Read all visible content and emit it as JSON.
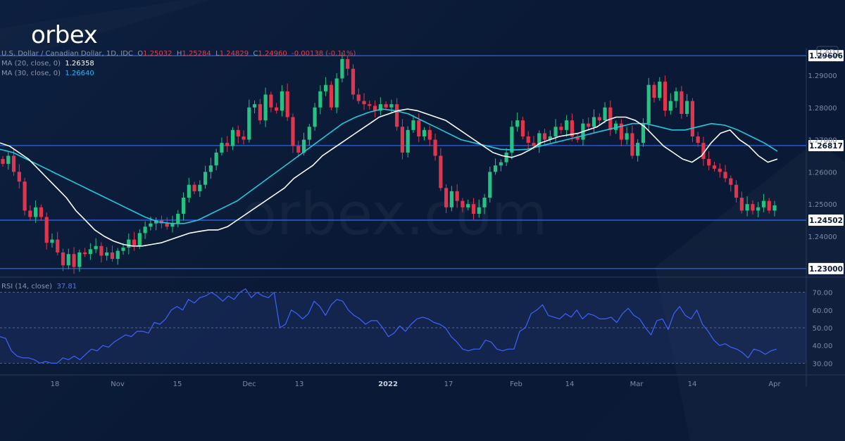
{
  "brand": {
    "logo_text": "orbex",
    "watermark": "orbex.com"
  },
  "header": {
    "symbol": "U.S. Dollar / Canadian Dollar, 1D, IDC",
    "ohlc": {
      "o_label": "O",
      "o": "1.25032",
      "h_label": "H",
      "h": "1.25284",
      "l_label": "L",
      "l": "1.24829",
      "c_label": "C",
      "c": "1.24960",
      "change": "-0.00138 (-0.11%)"
    }
  },
  "indicators": {
    "ma20": {
      "label": "MA (20, close, 0)",
      "value": "1.26358",
      "color": "#ffffff"
    },
    "ma30": {
      "label": "MA (30, close, 0)",
      "value": "1.26640",
      "color": "#26c6da"
    },
    "rsi": {
      "label": "RSI (14, close)",
      "value": "37.81",
      "color": "#3d63ff"
    }
  },
  "colors": {
    "up": "#26c281",
    "down": "#e0364c",
    "level": "#2f6bff",
    "background": "#0b1a36"
  },
  "chart_data": [
    {
      "type": "candlestick",
      "currency": "CAD",
      "ylim": [
        1.228,
        1.2985
      ],
      "yticks": [
        "1.24000",
        "1.25000",
        "1.26000",
        "1.27000",
        "1.28000",
        "1.29000"
      ],
      "levels": [
        "1.29606",
        "1.26817",
        "1.24502",
        "1.23000"
      ],
      "x_tick_labels": [
        "18",
        "Nov",
        "15",
        "Dec",
        "13",
        "2022",
        "17",
        "Feb",
        "14",
        "Mar",
        "14",
        "Apr"
      ],
      "closes": [
        1.2625,
        1.265,
        1.26,
        1.257,
        1.248,
        1.246,
        1.249,
        1.246,
        1.238,
        1.239,
        1.235,
        1.231,
        1.2345,
        1.2305,
        1.235,
        1.2345,
        1.236,
        1.237,
        1.234,
        1.235,
        1.233,
        1.2355,
        1.2365,
        1.239,
        1.237,
        1.241,
        1.243,
        1.244,
        1.245,
        1.244,
        1.243,
        1.244,
        1.247,
        1.252,
        1.256,
        1.254,
        1.256,
        1.26,
        1.262,
        1.266,
        1.269,
        1.268,
        1.273,
        1.271,
        1.27,
        1.28,
        1.281,
        1.276,
        1.284,
        1.28,
        1.279,
        1.285,
        1.277,
        1.268,
        1.266,
        1.27,
        1.274,
        1.28,
        1.285,
        1.287,
        1.28,
        1.289,
        1.295,
        1.292,
        1.284,
        1.282,
        1.281,
        1.2805,
        1.279,
        1.281,
        1.28,
        1.281,
        1.274,
        1.266,
        1.273,
        1.276,
        1.271,
        1.273,
        1.27,
        1.265,
        1.255,
        1.249,
        1.254,
        1.251,
        1.249,
        1.25,
        1.247,
        1.249,
        1.252,
        1.26,
        1.262,
        1.263,
        1.266,
        1.274,
        1.276,
        1.271,
        1.269,
        1.268,
        1.272,
        1.27,
        1.271,
        1.274,
        1.273,
        1.276,
        1.271,
        1.27,
        1.275,
        1.274,
        1.277,
        1.276,
        1.28,
        1.273,
        1.275,
        1.27,
        1.272,
        1.265,
        1.269,
        1.275,
        1.287,
        1.283,
        1.288,
        1.279,
        1.282,
        1.285,
        1.278,
        1.282,
        1.271,
        1.269,
        1.264,
        1.262,
        1.261,
        1.26,
        1.258,
        1.256,
        1.252,
        1.248,
        1.25,
        1.248,
        1.249,
        1.251,
        1.248,
        1.2496
      ],
      "ma20": [
        1.269,
        1.268,
        1.266,
        1.264,
        1.261,
        1.258,
        1.255,
        1.252,
        1.248,
        1.245,
        1.242,
        1.24,
        1.2385,
        1.2375,
        1.237,
        1.237,
        1.2375,
        1.238,
        1.239,
        1.24,
        1.241,
        1.2415,
        1.242,
        1.242,
        1.243,
        1.245,
        1.247,
        1.249,
        1.251,
        1.253,
        1.255,
        1.258,
        1.26,
        1.262,
        1.265,
        1.267,
        1.269,
        1.271,
        1.273,
        1.275,
        1.277,
        1.278,
        1.279,
        1.2795,
        1.279,
        1.278,
        1.277,
        1.276,
        1.274,
        1.272,
        1.27,
        1.268,
        1.266,
        1.265,
        1.2645,
        1.2655,
        1.267,
        1.269,
        1.27,
        1.271,
        1.2715,
        1.272,
        1.273,
        1.274,
        1.276,
        1.277,
        1.277,
        1.276,
        1.274,
        1.271,
        1.268,
        1.266,
        1.264,
        1.263,
        1.265,
        1.269,
        1.272,
        1.273,
        1.27,
        1.268,
        1.265,
        1.263,
        1.264
      ],
      "ma30": [
        1.267,
        1.266,
        1.264,
        1.262,
        1.26,
        1.258,
        1.256,
        1.254,
        1.252,
        1.25,
        1.248,
        1.246,
        1.2445,
        1.244,
        1.244,
        1.245,
        1.247,
        1.249,
        1.251,
        1.254,
        1.257,
        1.26,
        1.263,
        1.266,
        1.269,
        1.272,
        1.275,
        1.277,
        1.2785,
        1.2795,
        1.279,
        1.278,
        1.276,
        1.274,
        1.272,
        1.27,
        1.269,
        1.268,
        1.267,
        1.2668,
        1.267,
        1.268,
        1.269,
        1.27,
        1.271,
        1.272,
        1.273,
        1.274,
        1.275,
        1.275,
        1.274,
        1.273,
        1.273,
        1.274,
        1.275,
        1.2745,
        1.273,
        1.271,
        1.269,
        1.2664
      ],
      "rsi": {
        "ylim": [
          25,
          77
        ],
        "yticks": [
          "30.00",
          "40.00",
          "50.00",
          "60.00",
          "70.00"
        ],
        "bands": [
          30,
          50,
          70
        ],
        "values": [
          45,
          44,
          37,
          34,
          33,
          33,
          32,
          30,
          31,
          30,
          30,
          33,
          32,
          34,
          32,
          35,
          38,
          37,
          40,
          39,
          42,
          44,
          46,
          45,
          48,
          48,
          47,
          53,
          52,
          55,
          60,
          62,
          60,
          66,
          64,
          67,
          68,
          70,
          68,
          65,
          68,
          66,
          70,
          72,
          67,
          70,
          68,
          67,
          70,
          50,
          52,
          60,
          58,
          55,
          58,
          65,
          62,
          57,
          63,
          66,
          65,
          60,
          57,
          55,
          52,
          54,
          54,
          50,
          45,
          47,
          51,
          48,
          52,
          55,
          56,
          55,
          53,
          52,
          50,
          45,
          42,
          38,
          37,
          38,
          38,
          43,
          42,
          38,
          37,
          38,
          38,
          48,
          50,
          58,
          60,
          63,
          57,
          56,
          55,
          58,
          56,
          60,
          55,
          58,
          57,
          55,
          55,
          56,
          53,
          58,
          61,
          57,
          55,
          50,
          46,
          54,
          55,
          49,
          58,
          62,
          57,
          55,
          60,
          52,
          48,
          43,
          40,
          41,
          39,
          38,
          36,
          33,
          38,
          37,
          35,
          37,
          38
        ]
      }
    }
  ]
}
